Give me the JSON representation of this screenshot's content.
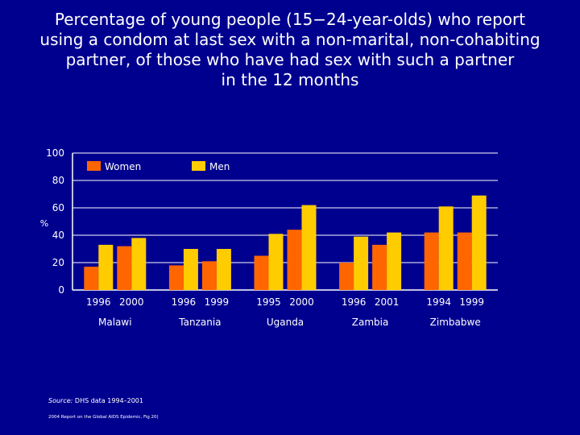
{
  "title_lines": [
    "Percentage of young people (15−24-year-olds) who report",
    "using a condom at last sex with a non-marital, non-cohabiting",
    "partner, of those who have had sex with such a partner",
    "in the 12 months"
  ],
  "colors": {
    "background": "#00008f",
    "women": "#ff6600",
    "men": "#ffcc00",
    "axis": "#ffffff"
  },
  "source": {
    "label": "Source:",
    "text": "DHS data 1994–2001"
  },
  "report": "2004 Report on the Global AIDS Epidemic, Fig 20)",
  "chart_data": {
    "type": "bar",
    "title": "Percentage of young people (15−24-year-olds) who report using a condom at last sex with a non-marital, non-cohabiting partner, of those who have had sex with such a partner in the 12 months",
    "ylabel": "%",
    "ylim": [
      0,
      100
    ],
    "yticks": [
      0,
      20,
      40,
      60,
      80,
      100
    ],
    "grid": true,
    "legend_position": "top",
    "series": [
      {
        "name": "Women",
        "color": "#ff6600"
      },
      {
        "name": "Men",
        "color": "#ffcc00"
      }
    ],
    "groups": [
      {
        "country": "Malawi",
        "surveys": [
          {
            "year": "1996",
            "women": 17,
            "men": 33
          },
          {
            "year": "2000",
            "women": 32,
            "men": 38
          }
        ]
      },
      {
        "country": "Tanzania",
        "surveys": [
          {
            "year": "1996",
            "women": 18,
            "men": 30
          },
          {
            "year": "1999",
            "women": 21,
            "men": 30
          }
        ]
      },
      {
        "country": "Uganda",
        "surveys": [
          {
            "year": "1995",
            "women": 25,
            "men": 41
          },
          {
            "year": "2000",
            "women": 44,
            "men": 62
          }
        ]
      },
      {
        "country": "Zambia",
        "surveys": [
          {
            "year": "1996",
            "women": 20,
            "men": 39
          },
          {
            "year": "2001",
            "women": 33,
            "men": 42
          }
        ]
      },
      {
        "country": "Zimbabwe",
        "surveys": [
          {
            "year": "1994",
            "women": 42,
            "men": 61
          },
          {
            "year": "1999",
            "women": 42,
            "men": 69
          }
        ]
      }
    ]
  }
}
